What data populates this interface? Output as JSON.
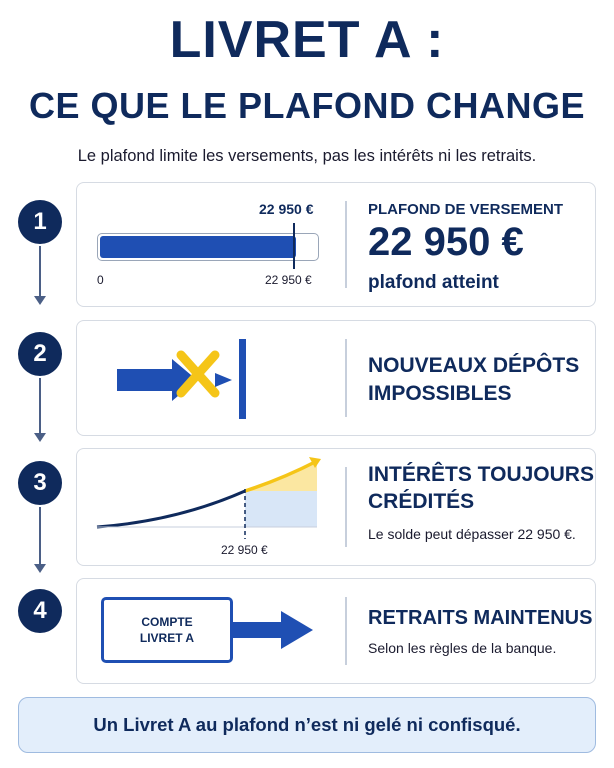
{
  "header": {
    "title_line1": "LIVRET A :",
    "title_line2": "CE QUE LE PLAFOND CHANGE",
    "subtitle": "Le plafond limite les versements, pas les intérêts ni les retraits."
  },
  "steps": [
    {
      "number": "1",
      "bar_top_label": "22 950 €",
      "bar_min_label": "0",
      "bar_max_label": "22 950 €",
      "bar_fill_fraction": 0.9,
      "heading": "PLAFOND DE VERSEMENT",
      "amount": "22 950 €",
      "status": "plafond atteint"
    },
    {
      "number": "2",
      "heading_line1": "NOUVEAUX DÉPÔTS",
      "heading_line2": "IMPOSSIBLES"
    },
    {
      "number": "3",
      "marker_label": "22 950 €",
      "heading_line1": "INTÉRÊTS TOUJOURS",
      "heading_line2": "CRÉDITÉS",
      "note": "Le solde peut dépasser 22 950 €."
    },
    {
      "number": "4",
      "box_line1": "COMPTE",
      "box_line2": "LIVRET A",
      "heading": "RETRAITS MAINTENUS",
      "note": "Selon les règles de la banque."
    }
  ],
  "footer": {
    "text": "Un Livret A au plafond n’est ni gelé ni confisqué."
  },
  "colors": {
    "navy": "#0f2a5c",
    "blue": "#1f4fb3",
    "yellow": "#f5c518",
    "light_blue": "#d8e6f7",
    "light_yellow": "#fbe7a1"
  }
}
